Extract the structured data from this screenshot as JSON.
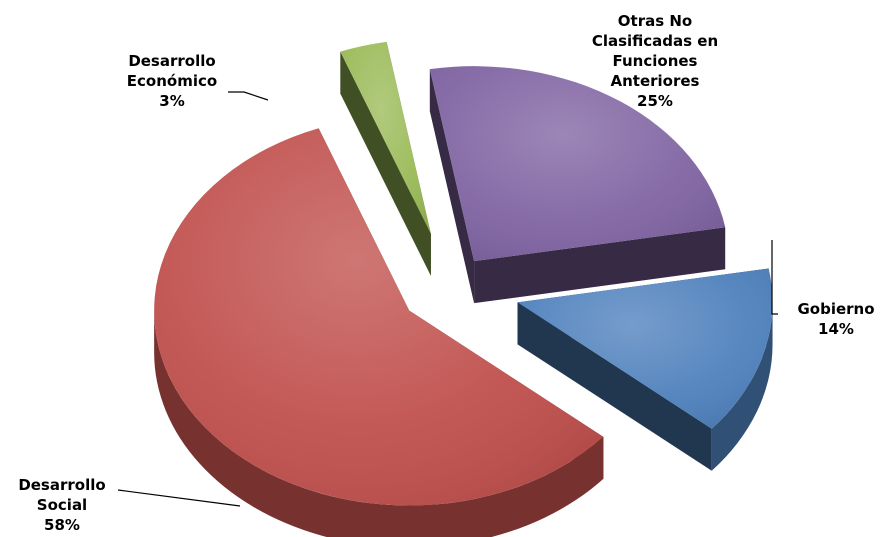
{
  "chart_data": {
    "type": "pie",
    "title": "",
    "categories": [
      "Otras No Clasificadas en Funciones Anteriores",
      "Gobierno",
      "Desarrollo Social",
      "Desarrollo Económico"
    ],
    "values": [
      25,
      14,
      58,
      3
    ],
    "colors": [
      "#8064a2",
      "#4f81bd",
      "#c0504d",
      "#9bbb59"
    ],
    "labels": [
      {
        "lines": [
          "Otras No",
          "Clasificadas en",
          "Funciones",
          "Anteriores"
        ],
        "pct": "25%"
      },
      {
        "lines": [
          "Gobierno"
        ],
        "pct": "14%"
      },
      {
        "lines": [
          "Desarrollo",
          "Social"
        ],
        "pct": "58%"
      },
      {
        "lines": [
          "Desarrollo",
          "Económico"
        ],
        "pct": "3%"
      }
    ],
    "exploded": true,
    "three_d": true,
    "legend": "none"
  }
}
